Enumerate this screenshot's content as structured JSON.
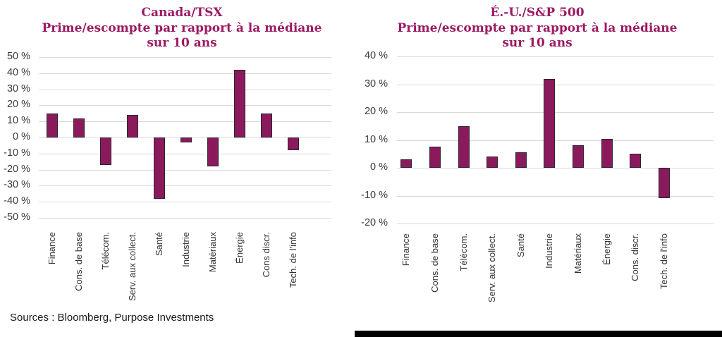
{
  "page": {
    "background": "#FFFFFF"
  },
  "palette": {
    "bar_fill": "#8A1A5C",
    "bar_border": "#2B2430",
    "title_color": "#9B1A63",
    "grid_color": "#D9D9D9",
    "axis_text_color": "#3B3B3B",
    "divider_color": "#000000"
  },
  "footer": {
    "source": "Sources : Bloomberg, Purpose Investments"
  },
  "chart_data": [
    {
      "type": "bar",
      "title": "Canada/TSX Prime/escompte par rapport à la médiane sur 10 ans",
      "title_lines": [
        "Canada/TSX",
        "Prime/escompte par rapport à la médiane",
        "sur 10 ans"
      ],
      "categories": [
        "Finance",
        "Cons. de base",
        "Télécom.",
        "Serv. aux collect.",
        "Santé",
        "Industrie",
        "Matériaux",
        "Énergie",
        "Cons discr.",
        "Tech. de l'info"
      ],
      "values": [
        15,
        12,
        -17,
        14,
        -38,
        -3,
        -18,
        42,
        15,
        -8
      ],
      "xlabel": "",
      "ylabel": "",
      "ylim": [
        -50,
        50
      ],
      "ytick_step": 10,
      "ytick_suffix": " %",
      "grid": true,
      "legend": false
    },
    {
      "type": "bar",
      "title": "É.-U./S&P 500 Prime/escompte par rapport à la médiane sur 10 ans",
      "title_lines": [
        "É.-U./S&P 500",
        "Prime/escompte par rapport à la médiane",
        "sur 10 ans"
      ],
      "categories": [
        "Finance",
        "Cons. de base",
        "Télécom.",
        "Serv. aux collect.",
        "Santé",
        "Industrie",
        "Matériaux",
        "Énergie",
        "Cons. discr.",
        "Tech. de l'info"
      ],
      "values": [
        3,
        7.5,
        15,
        4,
        5.5,
        32,
        8,
        10.5,
        5,
        -11
      ],
      "xlabel": "",
      "ylabel": "",
      "ylim": [
        -20,
        40
      ],
      "ytick_step": 10,
      "ytick_suffix": " %",
      "grid": true,
      "legend": false
    }
  ]
}
